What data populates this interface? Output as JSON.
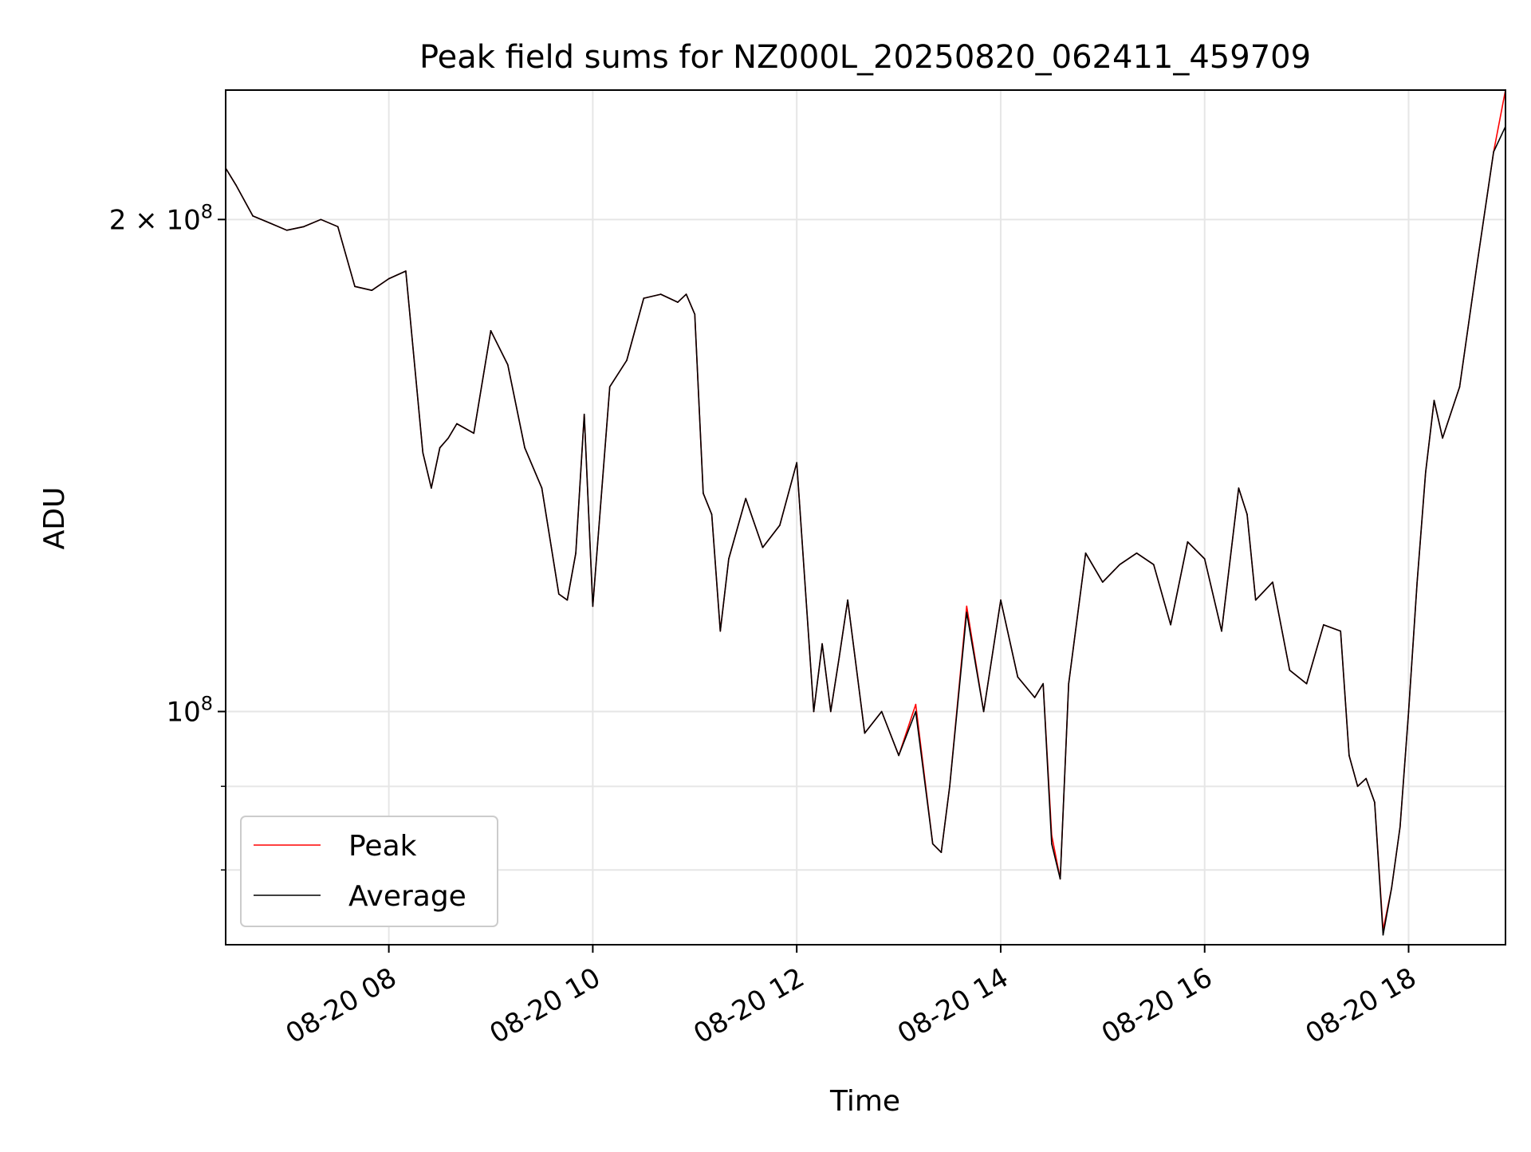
{
  "chart_data": {
    "type": "line",
    "title": "Peak field sums for NZ000L_20250820_062411_459709",
    "xlabel": "Time",
    "ylabel": "ADU",
    "y_scale": "log",
    "ylim": [
      72000000,
      240000000
    ],
    "xlim": [
      "2025-08-20 06:24",
      "2025-08-20 18:57"
    ],
    "x_ticks": [
      {
        "x": "2025-08-20 08:00",
        "label": "08-20 08"
      },
      {
        "x": "2025-08-20 10:00",
        "label": "08-20 10"
      },
      {
        "x": "2025-08-20 12:00",
        "label": "08-20 12"
      },
      {
        "x": "2025-08-20 14:00",
        "label": "08-20 14"
      },
      {
        "x": "2025-08-20 16:00",
        "label": "08-20 16"
      },
      {
        "x": "2025-08-20 18:00",
        "label": "08-20 18"
      }
    ],
    "y_ticks_major": [
      {
        "value": 100000000,
        "base": "10",
        "exp": "8",
        "mantissa": ""
      },
      {
        "value": 200000000,
        "base": "10",
        "exp": "8",
        "mantissa": "2 × "
      }
    ],
    "y_ticks_minor": [
      80000000,
      90000000
    ],
    "grid": true,
    "legend": {
      "position": "lower-left"
    },
    "series": [
      {
        "name": "Peak",
        "color": "#ff0000"
      },
      {
        "name": "Average",
        "color": "#000000"
      }
    ],
    "x": [
      "06:24",
      "06:30",
      "06:40",
      "06:50",
      "07:00",
      "07:10",
      "07:20",
      "07:30",
      "07:40",
      "07:50",
      "08:00",
      "08:10",
      "08:20",
      "08:25",
      "08:30",
      "08:35",
      "08:40",
      "08:50",
      "09:00",
      "09:10",
      "09:20",
      "09:30",
      "09:40",
      "09:45",
      "09:50",
      "09:55",
      "10:00",
      "10:10",
      "10:20",
      "10:30",
      "10:40",
      "10:50",
      "10:55",
      "11:00",
      "11:05",
      "11:10",
      "11:15",
      "11:20",
      "11:30",
      "11:40",
      "11:50",
      "12:00",
      "12:10",
      "12:15",
      "12:20",
      "12:25",
      "12:30",
      "12:40",
      "12:50",
      "13:00",
      "13:10",
      "13:20",
      "13:25",
      "13:30",
      "13:40",
      "13:50",
      "14:00",
      "14:10",
      "14:20",
      "14:25",
      "14:30",
      "14:35",
      "14:40",
      "14:50",
      "15:00",
      "15:10",
      "15:20",
      "15:30",
      "15:40",
      "15:50",
      "16:00",
      "16:10",
      "16:20",
      "16:25",
      "16:30",
      "16:40",
      "16:50",
      "17:00",
      "17:10",
      "17:20",
      "17:25",
      "17:30",
      "17:35",
      "17:40",
      "17:45",
      "17:50",
      "17:55",
      "18:00",
      "18:05",
      "18:10",
      "18:15",
      "18:20",
      "18:30",
      "18:40",
      "18:50",
      "18:57"
    ],
    "y_average": [
      215000000,
      210000000,
      201000000,
      199000000,
      197000000,
      198000000,
      200000000,
      198000000,
      182000000,
      181000000,
      184000000,
      186000000,
      144000000,
      137000000,
      145000000,
      147000000,
      150000000,
      148000000,
      171000000,
      163000000,
      145000000,
      137000000,
      118000000,
      117000000,
      125000000,
      152000000,
      116000000,
      158000000,
      164000000,
      179000000,
      180000000,
      178000000,
      180000000,
      175000000,
      136000000,
      132000000,
      112000000,
      124000000,
      135000000,
      126000000,
      130000000,
      142000000,
      100000000,
      110000000,
      100000000,
      108000000,
      117000000,
      97000000,
      100000000,
      94000000,
      100000000,
      83000000,
      82000000,
      90000000,
      115000000,
      100000000,
      117000000,
      105000000,
      102000000,
      104000000,
      83000000,
      79000000,
      104000000,
      125000000,
      120000000,
      123000000,
      125000000,
      123000000,
      113000000,
      127000000,
      124000000,
      112000000,
      137000000,
      132000000,
      117000000,
      120000000,
      106000000,
      104000000,
      113000000,
      112000000,
      94000000,
      90000000,
      91000000,
      88000000,
      73000000,
      78000000,
      85000000,
      100000000,
      120000000,
      140000000,
      155000000,
      147000000,
      158000000,
      187000000,
      220000000,
      228000000
    ],
    "y_peak": [
      215000000,
      210000000,
      201000000,
      199000000,
      197000000,
      198000000,
      200000000,
      198000000,
      182000000,
      181000000,
      184000000,
      186000000,
      144000000,
      137000000,
      145000000,
      147000000,
      150000000,
      148000000,
      171000000,
      163000000,
      145000000,
      137000000,
      118000000,
      117000000,
      125000000,
      152000000,
      116000000,
      158000000,
      164000000,
      179000000,
      180000000,
      178000000,
      180000000,
      175000000,
      136000000,
      132000000,
      112000000,
      124000000,
      135000000,
      126000000,
      130000000,
      142000000,
      100000000,
      110000000,
      100000000,
      108000000,
      117000000,
      97000000,
      100000000,
      94000000,
      101000000,
      83000000,
      82000000,
      90000000,
      116000000,
      100000000,
      117000000,
      105000000,
      102000000,
      104000000,
      84000000,
      79000000,
      104000000,
      125000000,
      120000000,
      123000000,
      125000000,
      123000000,
      113000000,
      127000000,
      124000000,
      112000000,
      137000000,
      132000000,
      117000000,
      120000000,
      106000000,
      104000000,
      113000000,
      112000000,
      94000000,
      90000000,
      91000000,
      88000000,
      73500000,
      78000000,
      85000000,
      100000000,
      120000000,
      140000000,
      155000000,
      147000000,
      158000000,
      187000000,
      220000000,
      240000000
    ]
  }
}
